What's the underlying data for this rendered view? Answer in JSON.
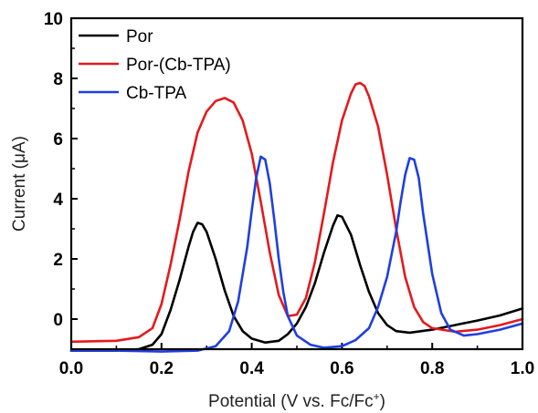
{
  "chart_data": {
    "type": "line",
    "xlabel": "Potential (V vs. Fc/Fc",
    "xlabel_sup": "+",
    "xlabel_end": ")",
    "ylabel": "Current (μA)",
    "xlim": [
      0.0,
      1.0
    ],
    "ylim": [
      -1.0,
      10.0
    ],
    "x_ticks": [
      "0.0",
      "0.2",
      "0.4",
      "0.6",
      "0.8",
      "1.0"
    ],
    "y_ticks": [
      "0",
      "2",
      "4",
      "6",
      "8",
      "10"
    ],
    "legend_position": "top-left",
    "series": [
      {
        "name": "Por",
        "color": "#000000",
        "points": [
          [
            0.0,
            -1.05
          ],
          [
            0.1,
            -1.05
          ],
          [
            0.15,
            -1.0
          ],
          [
            0.18,
            -0.85
          ],
          [
            0.2,
            -0.5
          ],
          [
            0.22,
            0.3
          ],
          [
            0.24,
            1.3
          ],
          [
            0.26,
            2.4
          ],
          [
            0.27,
            2.9
          ],
          [
            0.28,
            3.2
          ],
          [
            0.29,
            3.15
          ],
          [
            0.3,
            2.9
          ],
          [
            0.32,
            2.0
          ],
          [
            0.34,
            0.95
          ],
          [
            0.36,
            0.1
          ],
          [
            0.38,
            -0.4
          ],
          [
            0.4,
            -0.65
          ],
          [
            0.43,
            -0.78
          ],
          [
            0.46,
            -0.72
          ],
          [
            0.48,
            -0.5
          ],
          [
            0.5,
            -0.15
          ],
          [
            0.52,
            0.4
          ],
          [
            0.54,
            1.2
          ],
          [
            0.56,
            2.2
          ],
          [
            0.58,
            3.1
          ],
          [
            0.59,
            3.45
          ],
          [
            0.6,
            3.4
          ],
          [
            0.62,
            2.8
          ],
          [
            0.64,
            1.8
          ],
          [
            0.66,
            0.9
          ],
          [
            0.68,
            0.2
          ],
          [
            0.7,
            -0.2
          ],
          [
            0.72,
            -0.4
          ],
          [
            0.75,
            -0.45
          ],
          [
            0.8,
            -0.35
          ],
          [
            0.85,
            -0.2
          ],
          [
            0.9,
            -0.05
          ],
          [
            0.95,
            0.12
          ],
          [
            1.0,
            0.35
          ]
        ]
      },
      {
        "name": "Por-(Cb-TPA)",
        "color": "#e41a1c",
        "points": [
          [
            0.0,
            -0.75
          ],
          [
            0.1,
            -0.72
          ],
          [
            0.15,
            -0.6
          ],
          [
            0.18,
            -0.3
          ],
          [
            0.2,
            0.5
          ],
          [
            0.22,
            1.8
          ],
          [
            0.24,
            3.3
          ],
          [
            0.26,
            4.9
          ],
          [
            0.28,
            6.2
          ],
          [
            0.3,
            6.9
          ],
          [
            0.32,
            7.25
          ],
          [
            0.34,
            7.35
          ],
          [
            0.36,
            7.2
          ],
          [
            0.38,
            6.6
          ],
          [
            0.4,
            5.5
          ],
          [
            0.42,
            3.9
          ],
          [
            0.44,
            2.2
          ],
          [
            0.46,
            0.8
          ],
          [
            0.48,
            0.1
          ],
          [
            0.5,
            0.15
          ],
          [
            0.52,
            0.7
          ],
          [
            0.54,
            1.9
          ],
          [
            0.56,
            3.5
          ],
          [
            0.58,
            5.2
          ],
          [
            0.6,
            6.6
          ],
          [
            0.62,
            7.5
          ],
          [
            0.63,
            7.8
          ],
          [
            0.64,
            7.85
          ],
          [
            0.65,
            7.75
          ],
          [
            0.66,
            7.4
          ],
          [
            0.68,
            6.4
          ],
          [
            0.7,
            4.8
          ],
          [
            0.72,
            3.0
          ],
          [
            0.74,
            1.4
          ],
          [
            0.76,
            0.4
          ],
          [
            0.78,
            -0.1
          ],
          [
            0.8,
            -0.3
          ],
          [
            0.85,
            -0.42
          ],
          [
            0.9,
            -0.35
          ],
          [
            0.95,
            -0.2
          ],
          [
            1.0,
            0.0
          ]
        ]
      },
      {
        "name": "Cb-TPA",
        "color": "#1f3fe0",
        "points": [
          [
            0.0,
            -1.05
          ],
          [
            0.1,
            -1.05
          ],
          [
            0.2,
            -1.08
          ],
          [
            0.28,
            -1.05
          ],
          [
            0.32,
            -0.9
          ],
          [
            0.35,
            -0.4
          ],
          [
            0.37,
            0.6
          ],
          [
            0.39,
            2.4
          ],
          [
            0.4,
            3.6
          ],
          [
            0.41,
            4.7
          ],
          [
            0.42,
            5.4
          ],
          [
            0.43,
            5.3
          ],
          [
            0.44,
            4.5
          ],
          [
            0.45,
            3.3
          ],
          [
            0.46,
            2.0
          ],
          [
            0.47,
            0.9
          ],
          [
            0.48,
            0.1
          ],
          [
            0.5,
            -0.55
          ],
          [
            0.53,
            -0.85
          ],
          [
            0.56,
            -0.95
          ],
          [
            0.6,
            -0.9
          ],
          [
            0.63,
            -0.7
          ],
          [
            0.66,
            -0.3
          ],
          [
            0.68,
            0.4
          ],
          [
            0.7,
            1.4
          ],
          [
            0.72,
            2.9
          ],
          [
            0.73,
            3.9
          ],
          [
            0.74,
            4.8
          ],
          [
            0.75,
            5.35
          ],
          [
            0.76,
            5.3
          ],
          [
            0.77,
            4.7
          ],
          [
            0.78,
            3.5
          ],
          [
            0.8,
            1.5
          ],
          [
            0.82,
            0.2
          ],
          [
            0.84,
            -0.35
          ],
          [
            0.87,
            -0.55
          ],
          [
            0.9,
            -0.5
          ],
          [
            0.95,
            -0.35
          ],
          [
            1.0,
            -0.15
          ]
        ]
      }
    ]
  }
}
